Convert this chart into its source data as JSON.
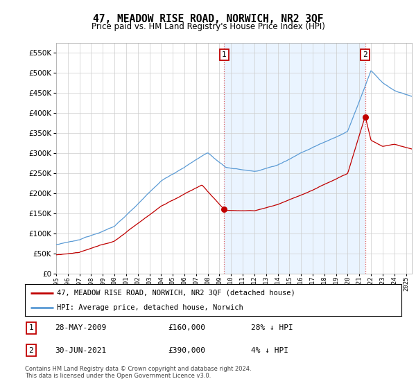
{
  "title": "47, MEADOW RISE ROAD, NORWICH, NR2 3QF",
  "subtitle": "Price paid vs. HM Land Registry's House Price Index (HPI)",
  "ylim": [
    0,
    575000
  ],
  "yticks": [
    0,
    50000,
    100000,
    150000,
    200000,
    250000,
    300000,
    350000,
    400000,
    450000,
    500000,
    550000
  ],
  "xlim_start": 1995.0,
  "xlim_end": 2025.5,
  "hpi_color": "#5b9bd5",
  "hpi_fill_color": "#ddeeff",
  "price_color": "#c00000",
  "vline_color": "#e06060",
  "grid_color": "#cccccc",
  "background_color": "#ffffff",
  "transaction1_x": 2009.41,
  "transaction1_y": 160000,
  "transaction1_label": "1",
  "transaction2_x": 2021.5,
  "transaction2_y": 390000,
  "transaction2_label": "2",
  "legend_line1": "47, MEADOW RISE ROAD, NORWICH, NR2 3QF (detached house)",
  "legend_line2": "HPI: Average price, detached house, Norwich",
  "table_row1_num": "1",
  "table_row1_date": "28-MAY-2009",
  "table_row1_price": "£160,000",
  "table_row1_hpi": "28% ↓ HPI",
  "table_row2_num": "2",
  "table_row2_date": "30-JUN-2021",
  "table_row2_price": "£390,000",
  "table_row2_hpi": "4% ↓ HPI",
  "footer": "Contains HM Land Registry data © Crown copyright and database right 2024.\nThis data is licensed under the Open Government Licence v3.0."
}
